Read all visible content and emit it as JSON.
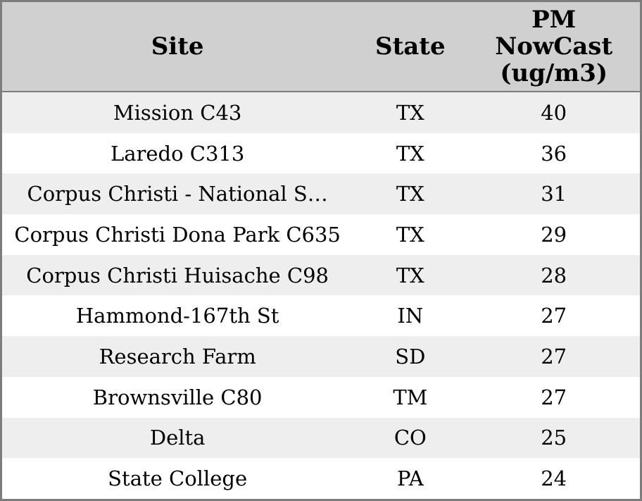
{
  "chart_data": {
    "type": "table",
    "title": "PM NowCast site ranking table",
    "columns": [
      {
        "key": "site",
        "label": "Site"
      },
      {
        "key": "state",
        "label": "State"
      },
      {
        "key": "pm",
        "label": "PM NowCast (ug/m3)",
        "label_lines": [
          "PM",
          "NowCast",
          "(ug/m3)"
        ]
      }
    ],
    "rows": [
      {
        "site": "Mission C43",
        "state": "TX",
        "pm": "40"
      },
      {
        "site": "Laredo C313",
        "state": "TX",
        "pm": "36"
      },
      {
        "site": "Corpus Christi - National S…",
        "state": "TX",
        "pm": "31"
      },
      {
        "site": "Corpus Christi Dona Park C635",
        "state": "TX",
        "pm": "29"
      },
      {
        "site": "Corpus Christi Huisache C98",
        "state": "TX",
        "pm": "28"
      },
      {
        "site": "Hammond-167th St",
        "state": "IN",
        "pm": "27"
      },
      {
        "site": "Research Farm",
        "state": "SD",
        "pm": "27"
      },
      {
        "site": "Brownsville C80",
        "state": "TM",
        "pm": "27"
      },
      {
        "site": "Delta",
        "state": "CO",
        "pm": "25"
      },
      {
        "site": "State College",
        "state": "PA",
        "pm": "24"
      }
    ],
    "layout": {
      "header_bg": "#d0d0d0",
      "alt_row_bg": "#eeeeee",
      "row_bg": "#ffffff",
      "border_color": "#7d7d7d",
      "text_color": "#000000"
    }
  }
}
